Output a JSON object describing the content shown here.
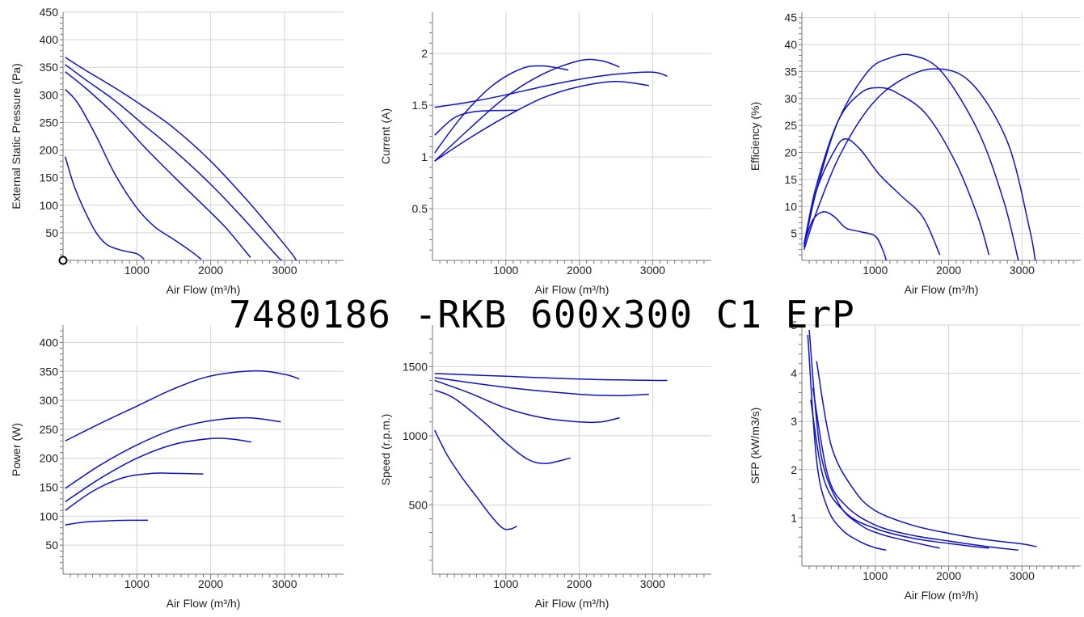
{
  "title": "7480186 -RKB 600x300 C1 ErP",
  "colors": {
    "curve": "#1010cc",
    "grid": "#d4d4d4"
  },
  "chart_data": [
    {
      "type": "line",
      "xlabel": "Air Flow (m³/h)",
      "ylabel": "External Static Pressure (Pa)",
      "xlim": [
        0,
        3800
      ],
      "ylim": [
        0,
        450
      ],
      "xticks": [
        1000,
        2000,
        3000
      ],
      "yticks": [
        50,
        100,
        150,
        200,
        250,
        300,
        350,
        400,
        450
      ],
      "marker": [
        0,
        0
      ],
      "series": [
        {
          "x": [
            30,
            300,
            700,
            1100,
            1500,
            2000,
            2500,
            2900,
            3100,
            3160
          ],
          "y": [
            368,
            345,
            313,
            278,
            240,
            180,
            108,
            45,
            12,
            0
          ]
        },
        {
          "x": [
            30,
            300,
            700,
            1100,
            1500,
            2000,
            2400,
            2750,
            2920,
            2960
          ],
          "y": [
            355,
            328,
            290,
            245,
            200,
            138,
            82,
            30,
            5,
            0
          ]
        },
        {
          "x": [
            30,
            300,
            700,
            1100,
            1500,
            1900,
            2200,
            2450,
            2540
          ],
          "y": [
            342,
            313,
            264,
            206,
            152,
            100,
            60,
            20,
            5
          ]
        },
        {
          "x": [
            30,
            200,
            450,
            700,
            1000,
            1250,
            1500,
            1750,
            1870
          ],
          "y": [
            310,
            285,
            225,
            157,
            95,
            60,
            38,
            15,
            2
          ]
        },
        {
          "x": [
            30,
            150,
            300,
            450,
            600,
            800,
            1000,
            1100
          ],
          "y": [
            188,
            135,
            88,
            50,
            28,
            18,
            12,
            2
          ]
        }
      ]
    },
    {
      "type": "line",
      "xlabel": "Air Flow (m³/h)",
      "ylabel": "Current (A)",
      "xlim": [
        0,
        3800
      ],
      "ylim": [
        0,
        2.4
      ],
      "xticks": [
        1000,
        2000,
        3000
      ],
      "yticks": [
        0.5,
        1,
        1.5,
        2
      ],
      "series": [
        {
          "x": [
            30,
            500,
            1000,
            1500,
            2000,
            2500,
            3000,
            3200
          ],
          "y": [
            1.48,
            1.53,
            1.6,
            1.68,
            1.75,
            1.8,
            1.82,
            1.78
          ]
        },
        {
          "x": [
            30,
            500,
            1000,
            1500,
            2000,
            2500,
            2950
          ],
          "y": [
            0.96,
            1.18,
            1.39,
            1.57,
            1.68,
            1.73,
            1.69
          ]
        },
        {
          "x": [
            30,
            500,
            1000,
            1500,
            2000,
            2300,
            2550
          ],
          "y": [
            0.96,
            1.27,
            1.58,
            1.8,
            1.93,
            1.93,
            1.87
          ]
        },
        {
          "x": [
            30,
            400,
            800,
            1200,
            1500,
            1850
          ],
          "y": [
            1.04,
            1.39,
            1.68,
            1.85,
            1.88,
            1.84
          ]
        },
        {
          "x": [
            30,
            300,
            600,
            1000,
            1150
          ],
          "y": [
            1.21,
            1.38,
            1.44,
            1.45,
            1.45
          ]
        }
      ]
    },
    {
      "type": "line",
      "xlabel": "Air Flow (m³/h)",
      "ylabel": "Efficiency (%)",
      "xlim": [
        0,
        3800
      ],
      "ylim": [
        0,
        46
      ],
      "xticks": [
        1000,
        2000,
        3000
      ],
      "yticks": [
        5,
        10,
        15,
        20,
        25,
        30,
        35,
        40,
        45
      ],
      "series": [
        {
          "x": [
            30,
            200,
            500,
            900,
            1300,
            1800,
            2300,
            2800,
            3100,
            3180
          ],
          "y": [
            2,
            9,
            19,
            28,
            33,
            35.5,
            33,
            22,
            6,
            0
          ]
        },
        {
          "x": [
            30,
            200,
            500,
            900,
            1200,
            1500,
            1900,
            2400,
            2750,
            2950
          ],
          "y": [
            2.5,
            13,
            26,
            35,
            37.5,
            38,
            35,
            24,
            11,
            0
          ]
        },
        {
          "x": [
            30,
            200,
            500,
            800,
            1050,
            1300,
            1700,
            2100,
            2400,
            2550
          ],
          "y": [
            3,
            14,
            26,
            31,
            32,
            31,
            27,
            18,
            8,
            1
          ]
        },
        {
          "x": [
            30,
            200,
            450,
            600,
            800,
            1050,
            1350,
            1650,
            1880
          ],
          "y": [
            3,
            13,
            20.5,
            22.5,
            20.5,
            16,
            12,
            8,
            1
          ]
        },
        {
          "x": [
            30,
            150,
            300,
            450,
            600,
            800,
            1000,
            1100,
            1150
          ],
          "y": [
            3,
            7.5,
            9,
            8,
            6,
            5.3,
            4.5,
            2,
            0
          ]
        }
      ]
    },
    {
      "type": "line",
      "xlabel": "Air Flow (m³/h)",
      "ylabel": "Power (W)",
      "xlim": [
        0,
        3800
      ],
      "ylim": [
        0,
        430
      ],
      "xticks": [
        1000,
        2000,
        3000
      ],
      "yticks": [
        50,
        100,
        150,
        200,
        250,
        300,
        350,
        400
      ],
      "series": [
        {
          "x": [
            30,
            500,
            1000,
            1500,
            2000,
            2600,
            3000,
            3200
          ],
          "y": [
            230,
            260,
            290,
            320,
            342,
            351,
            345,
            337
          ]
        },
        {
          "x": [
            30,
            500,
            1000,
            1500,
            2000,
            2500,
            2950
          ],
          "y": [
            148,
            188,
            223,
            250,
            265,
            270,
            263
          ]
        },
        {
          "x": [
            30,
            500,
            1000,
            1500,
            2000,
            2300,
            2550
          ],
          "y": [
            125,
            165,
            200,
            224,
            234,
            233,
            228
          ]
        },
        {
          "x": [
            30,
            400,
            800,
            1200,
            1500,
            1900
          ],
          "y": [
            110,
            143,
            166,
            174,
            174,
            173
          ]
        },
        {
          "x": [
            30,
            300,
            600,
            900,
            1150
          ],
          "y": [
            85,
            90,
            92,
            93,
            93
          ]
        }
      ]
    },
    {
      "type": "line",
      "xlabel": "Air Flow (m³/h)",
      "ylabel": "Speed (r.p.m.)",
      "xlim": [
        0,
        3800
      ],
      "ylim": [
        0,
        1800
      ],
      "xticks": [
        1000,
        2000,
        3000
      ],
      "yticks": [
        500,
        1000,
        1500
      ],
      "series": [
        {
          "x": [
            30,
            1000,
            2000,
            3000,
            3200
          ],
          "y": [
            1450,
            1430,
            1410,
            1400,
            1400
          ]
        },
        {
          "x": [
            30,
            1000,
            2000,
            2500,
            2950
          ],
          "y": [
            1420,
            1350,
            1300,
            1290,
            1300
          ]
        },
        {
          "x": [
            30,
            500,
            1000,
            1500,
            2000,
            2300,
            2550
          ],
          "y": [
            1400,
            1310,
            1200,
            1130,
            1100,
            1100,
            1130
          ]
        },
        {
          "x": [
            30,
            300,
            700,
            1000,
            1300,
            1550,
            1880
          ],
          "y": [
            1330,
            1270,
            1100,
            950,
            830,
            800,
            840
          ]
        },
        {
          "x": [
            30,
            200,
            400,
            600,
            800,
            950,
            1050,
            1150
          ],
          "y": [
            1040,
            860,
            700,
            560,
            420,
            335,
            325,
            345
          ]
        }
      ]
    },
    {
      "type": "line",
      "xlabel": "Air Flow (m³/h)",
      "ylabel": "SFP (kW/m3/s)",
      "xlim": [
        0,
        3800
      ],
      "ylim": [
        0,
        5
      ],
      "xticks": [
        1000,
        2000,
        3000
      ],
      "yticks": [
        1,
        2,
        3,
        4,
        5
      ],
      "series": [
        {
          "x": [
            200,
            400,
            700,
            1000,
            1500,
            2000,
            2500,
            3000,
            3200
          ],
          "y": [
            4.25,
            2.5,
            1.6,
            1.15,
            0.85,
            0.68,
            0.55,
            0.46,
            0.4
          ]
        },
        {
          "x": [
            150,
            350,
            600,
            1000,
            1500,
            2000,
            2500,
            2950
          ],
          "y": [
            3.7,
            1.9,
            1.25,
            0.85,
            0.64,
            0.52,
            0.41,
            0.33
          ]
        },
        {
          "x": [
            120,
            300,
            600,
            1000,
            1500,
            2000,
            2550
          ],
          "y": [
            3.45,
            1.8,
            1.1,
            0.78,
            0.58,
            0.47,
            0.37
          ]
        },
        {
          "x": [
            100,
            250,
            500,
            800,
            1100,
            1500,
            1880
          ],
          "y": [
            4.9,
            2.4,
            1.3,
            0.85,
            0.65,
            0.5,
            0.37
          ]
        },
        {
          "x": [
            80,
            200,
            350,
            550,
            800,
            1000,
            1150
          ],
          "y": [
            4.8,
            2.2,
            1.2,
            0.75,
            0.5,
            0.38,
            0.33
          ]
        }
      ]
    }
  ]
}
